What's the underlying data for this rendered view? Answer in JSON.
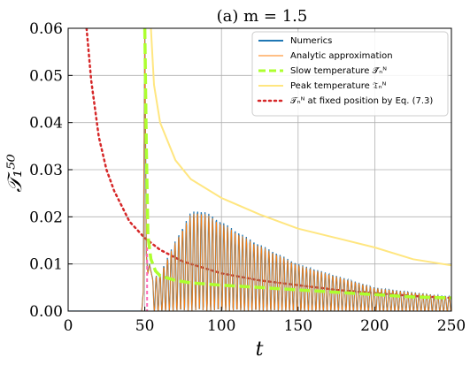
{
  "chart_data": {
    "type": "line",
    "title": "(a) m = 1.5",
    "xlabel": "t",
    "ylabel": "𝒯₁⁵⁰",
    "xlim": [
      0,
      250
    ],
    "ylim": [
      0,
      0.06
    ],
    "xticks": [
      0,
      50,
      100,
      150,
      200,
      250
    ],
    "yticks": [
      0.0,
      0.01,
      0.02,
      0.03,
      0.04,
      0.05,
      0.06
    ],
    "xtick_labels": [
      "0",
      "50",
      "100",
      "150",
      "200",
      "250"
    ],
    "ytick_labels": [
      "0.00",
      "0.01",
      "0.02",
      "0.03",
      "0.04",
      "0.05",
      "0.06"
    ],
    "grid": true,
    "legend_position": "top-right",
    "colors": {
      "numerics": "#1f77b4",
      "analytic": "#ff7f0e",
      "slow": "#adff2f",
      "peak": "#ffe680",
      "fixed": "#d62728",
      "marker": "#ff69b4"
    },
    "series": [
      {
        "name": "Numerics",
        "style": "solid",
        "description_points": {
          "x": [
            0,
            48,
            49,
            50,
            51,
            52,
            53,
            55,
            60,
            70,
            80,
            85,
            90,
            100,
            120,
            150,
            200,
            250
          ],
          "y": [
            0,
            0,
            0.004,
            0.06,
            0.012,
            0.008,
            0.01,
            0.007,
            0.008,
            0.015,
            0.021,
            0.0215,
            0.021,
            0.019,
            0.015,
            0.01,
            0.005,
            0.003
          ]
        }
      },
      {
        "name": "Analytic approximation",
        "style": "solid"
      },
      {
        "name": "Slow temperature 𝒯̄ₙᴺ",
        "style": "dashed",
        "x": [
          50,
          51,
          52,
          54,
          57,
          60,
          70,
          80,
          100,
          125,
          150,
          175,
          200,
          225,
          250
        ],
        "y": [
          0.06,
          0.035,
          0.016,
          0.011,
          0.0085,
          0.0075,
          0.0065,
          0.006,
          0.0055,
          0.005,
          0.0045,
          0.004,
          0.0035,
          0.003,
          0.0028
        ]
      },
      {
        "name": "Peak temperature 𝔗ₙᴺ",
        "style": "solid",
        "x": [
          54,
          56,
          60,
          70,
          80,
          100,
          125,
          150,
          175,
          200,
          225,
          250
        ],
        "y": [
          0.06,
          0.048,
          0.04,
          0.032,
          0.028,
          0.024,
          0.0205,
          0.0175,
          0.0155,
          0.0135,
          0.011,
          0.0097
        ]
      },
      {
        "name": "𝒯ₙᴺ at fixed position by Eq. (7.3)",
        "style": "dotted",
        "x": [
          12,
          15,
          20,
          25,
          30,
          40,
          50,
          60,
          75,
          100,
          125,
          150,
          175,
          200,
          225,
          250
        ],
        "y": [
          0.06,
          0.049,
          0.037,
          0.03,
          0.0255,
          0.019,
          0.0155,
          0.013,
          0.0105,
          0.008,
          0.0065,
          0.0055,
          0.0045,
          0.0038,
          0.0032,
          0.0028
        ]
      }
    ]
  }
}
